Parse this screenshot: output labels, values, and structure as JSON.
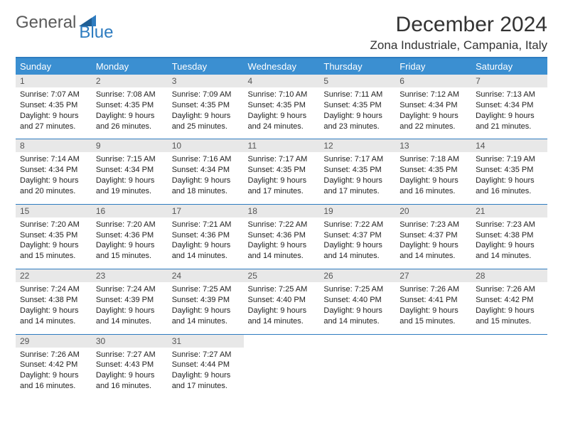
{
  "brand": {
    "part1": "General",
    "part2": "Blue"
  },
  "title": "December 2024",
  "location": "Zona Industriale, Campania, Italy",
  "colors": {
    "header_bg": "#3b8fd1",
    "accent_line": "#2e7cc0",
    "daynum_bg": "#e8e8e8",
    "logo_gray": "#5a5a5a",
    "logo_blue": "#2e7cc0"
  },
  "day_headers": [
    "Sunday",
    "Monday",
    "Tuesday",
    "Wednesday",
    "Thursday",
    "Friday",
    "Saturday"
  ],
  "weeks": [
    [
      {
        "n": "1",
        "sunrise": "7:07 AM",
        "sunset": "4:35 PM",
        "daylight": "9 hours and 27 minutes."
      },
      {
        "n": "2",
        "sunrise": "7:08 AM",
        "sunset": "4:35 PM",
        "daylight": "9 hours and 26 minutes."
      },
      {
        "n": "3",
        "sunrise": "7:09 AM",
        "sunset": "4:35 PM",
        "daylight": "9 hours and 25 minutes."
      },
      {
        "n": "4",
        "sunrise": "7:10 AM",
        "sunset": "4:35 PM",
        "daylight": "9 hours and 24 minutes."
      },
      {
        "n": "5",
        "sunrise": "7:11 AM",
        "sunset": "4:35 PM",
        "daylight": "9 hours and 23 minutes."
      },
      {
        "n": "6",
        "sunrise": "7:12 AM",
        "sunset": "4:34 PM",
        "daylight": "9 hours and 22 minutes."
      },
      {
        "n": "7",
        "sunrise": "7:13 AM",
        "sunset": "4:34 PM",
        "daylight": "9 hours and 21 minutes."
      }
    ],
    [
      {
        "n": "8",
        "sunrise": "7:14 AM",
        "sunset": "4:34 PM",
        "daylight": "9 hours and 20 minutes."
      },
      {
        "n": "9",
        "sunrise": "7:15 AM",
        "sunset": "4:34 PM",
        "daylight": "9 hours and 19 minutes."
      },
      {
        "n": "10",
        "sunrise": "7:16 AM",
        "sunset": "4:34 PM",
        "daylight": "9 hours and 18 minutes."
      },
      {
        "n": "11",
        "sunrise": "7:17 AM",
        "sunset": "4:35 PM",
        "daylight": "9 hours and 17 minutes."
      },
      {
        "n": "12",
        "sunrise": "7:17 AM",
        "sunset": "4:35 PM",
        "daylight": "9 hours and 17 minutes."
      },
      {
        "n": "13",
        "sunrise": "7:18 AM",
        "sunset": "4:35 PM",
        "daylight": "9 hours and 16 minutes."
      },
      {
        "n": "14",
        "sunrise": "7:19 AM",
        "sunset": "4:35 PM",
        "daylight": "9 hours and 16 minutes."
      }
    ],
    [
      {
        "n": "15",
        "sunrise": "7:20 AM",
        "sunset": "4:35 PM",
        "daylight": "9 hours and 15 minutes."
      },
      {
        "n": "16",
        "sunrise": "7:20 AM",
        "sunset": "4:36 PM",
        "daylight": "9 hours and 15 minutes."
      },
      {
        "n": "17",
        "sunrise": "7:21 AM",
        "sunset": "4:36 PM",
        "daylight": "9 hours and 14 minutes."
      },
      {
        "n": "18",
        "sunrise": "7:22 AM",
        "sunset": "4:36 PM",
        "daylight": "9 hours and 14 minutes."
      },
      {
        "n": "19",
        "sunrise": "7:22 AM",
        "sunset": "4:37 PM",
        "daylight": "9 hours and 14 minutes."
      },
      {
        "n": "20",
        "sunrise": "7:23 AM",
        "sunset": "4:37 PM",
        "daylight": "9 hours and 14 minutes."
      },
      {
        "n": "21",
        "sunrise": "7:23 AM",
        "sunset": "4:38 PM",
        "daylight": "9 hours and 14 minutes."
      }
    ],
    [
      {
        "n": "22",
        "sunrise": "7:24 AM",
        "sunset": "4:38 PM",
        "daylight": "9 hours and 14 minutes."
      },
      {
        "n": "23",
        "sunrise": "7:24 AM",
        "sunset": "4:39 PM",
        "daylight": "9 hours and 14 minutes."
      },
      {
        "n": "24",
        "sunrise": "7:25 AM",
        "sunset": "4:39 PM",
        "daylight": "9 hours and 14 minutes."
      },
      {
        "n": "25",
        "sunrise": "7:25 AM",
        "sunset": "4:40 PM",
        "daylight": "9 hours and 14 minutes."
      },
      {
        "n": "26",
        "sunrise": "7:25 AM",
        "sunset": "4:40 PM",
        "daylight": "9 hours and 14 minutes."
      },
      {
        "n": "27",
        "sunrise": "7:26 AM",
        "sunset": "4:41 PM",
        "daylight": "9 hours and 15 minutes."
      },
      {
        "n": "28",
        "sunrise": "7:26 AM",
        "sunset": "4:42 PM",
        "daylight": "9 hours and 15 minutes."
      }
    ],
    [
      {
        "n": "29",
        "sunrise": "7:26 AM",
        "sunset": "4:42 PM",
        "daylight": "9 hours and 16 minutes."
      },
      {
        "n": "30",
        "sunrise": "7:27 AM",
        "sunset": "4:43 PM",
        "daylight": "9 hours and 16 minutes."
      },
      {
        "n": "31",
        "sunrise": "7:27 AM",
        "sunset": "4:44 PM",
        "daylight": "9 hours and 17 minutes."
      },
      null,
      null,
      null,
      null
    ]
  ],
  "labels": {
    "sunrise": "Sunrise:",
    "sunset": "Sunset:",
    "daylight": "Daylight:"
  }
}
